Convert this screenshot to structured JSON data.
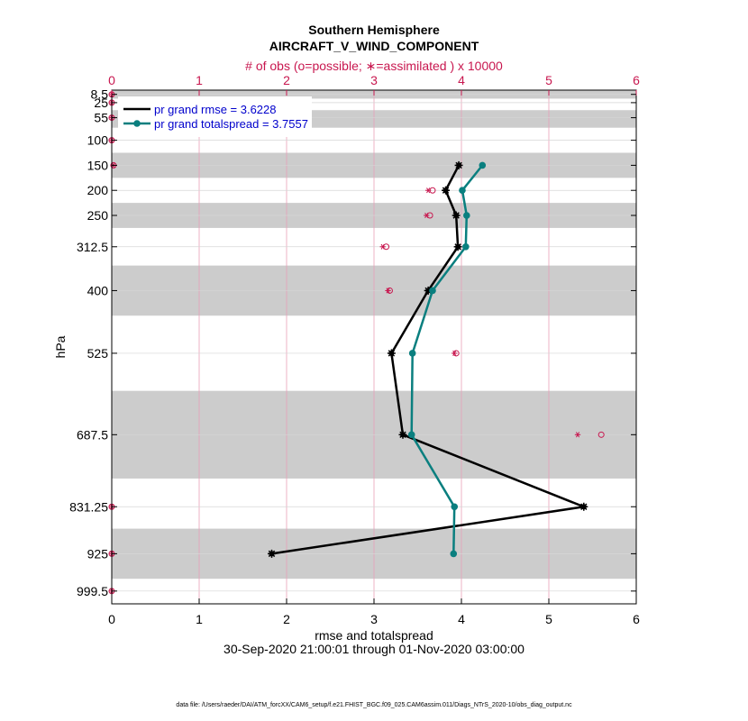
{
  "chart_data": {
    "type": "line",
    "title": "Southern Hemisphere",
    "subtitle": "AIRCRAFT_V_WIND_COMPONENT",
    "top_axis_label": "# of obs (o=possible;  ∗=assimilated ) x 10000",
    "xlabel": "rmse and totalspread",
    "ylabel": "hPa",
    "date_range": "30-Sep-2020 21:00:01 through 01-Nov-2020 03:00:00",
    "footnote": "data file: /Users/raeder/DAI/ATM_forcXX/CAM6_setup/f.e21.FHIST_BGC.f09_025.CAM6assim.011/Diags_NTrS_2020-10/obs_diag_output.nc",
    "xlim": [
      0,
      6
    ],
    "xticks": [
      "0",
      "1",
      "2",
      "3",
      "4",
      "5",
      "6"
    ],
    "top_xlim": [
      0,
      6
    ],
    "top_xticks": [
      "0",
      "1",
      "2",
      "3",
      "4",
      "5",
      "6"
    ],
    "ylim": [
      1025,
      0
    ],
    "levels": [
      8.5,
      25,
      55,
      100,
      150,
      200,
      250,
      312.5,
      400,
      525,
      687.5,
      831.25,
      925,
      999.5
    ],
    "level_labels": [
      "8.5",
      "25",
      "55",
      "100",
      "150",
      "200",
      "250",
      "312.5",
      "400",
      "525",
      "687.5",
      "831.25",
      "925",
      "999.5"
    ],
    "shaded_bands": [
      [
        0,
        17
      ],
      [
        40,
        75
      ],
      [
        125,
        175
      ],
      [
        225,
        275
      ],
      [
        350,
        450
      ],
      [
        600,
        775
      ],
      [
        875,
        975
      ]
    ],
    "series": [
      {
        "name": "pr grand rmse = 3.6228",
        "color": "#000000",
        "marker": "star",
        "levels": [
          150,
          200,
          250,
          312.5,
          400,
          525,
          687.5,
          831.25,
          925
        ],
        "values": [
          3.97,
          3.82,
          3.94,
          3.96,
          3.62,
          3.2,
          3.33,
          5.4,
          1.83
        ]
      },
      {
        "name": "pr grand totalspread = 3.7557",
        "color": "#0a7f7f",
        "marker": "circle",
        "levels": [
          150,
          200,
          250,
          312.5,
          400,
          525,
          687.5,
          831.25,
          925
        ],
        "values": [
          4.24,
          4.01,
          4.06,
          4.05,
          3.67,
          3.44,
          3.43,
          3.92,
          3.91
        ]
      }
    ],
    "obs_possible": [
      {
        "level": 8.5,
        "value": 0.0
      },
      {
        "level": 25,
        "value": 0.0
      },
      {
        "level": 55,
        "value": 0.0
      },
      {
        "level": 100,
        "value": 0.0
      },
      {
        "level": 150,
        "value": 0.02
      },
      {
        "level": 200,
        "value": 3.67
      },
      {
        "level": 250,
        "value": 3.64
      },
      {
        "level": 312.5,
        "value": 3.14
      },
      {
        "level": 400,
        "value": 3.18
      },
      {
        "level": 525,
        "value": 3.94
      },
      {
        "level": 687.5,
        "value": 5.6
      },
      {
        "level": 831.25,
        "value": 0.0
      },
      {
        "level": 925,
        "value": 0.0
      },
      {
        "level": 999.5,
        "value": 0.0
      }
    ],
    "obs_assimilated": [
      {
        "level": 8.5,
        "value": 0.0
      },
      {
        "level": 25,
        "value": 0.0
      },
      {
        "level": 55,
        "value": 0.0
      },
      {
        "level": 100,
        "value": 0.0
      },
      {
        "level": 150,
        "value": 0.02
      },
      {
        "level": 200,
        "value": 3.62
      },
      {
        "level": 250,
        "value": 3.6
      },
      {
        "level": 312.5,
        "value": 3.1
      },
      {
        "level": 400,
        "value": 3.16
      },
      {
        "level": 525,
        "value": 3.92
      },
      {
        "level": 687.5,
        "value": 5.33
      },
      {
        "level": 831.25,
        "value": 0.0
      },
      {
        "level": 925,
        "value": 0.0
      },
      {
        "level": 999.5,
        "value": 0.0
      }
    ],
    "colors": {
      "obs": "#c8174f",
      "band": "#cccccc",
      "grid": "#e8a0b8",
      "legend_text": "#0000cc"
    }
  }
}
